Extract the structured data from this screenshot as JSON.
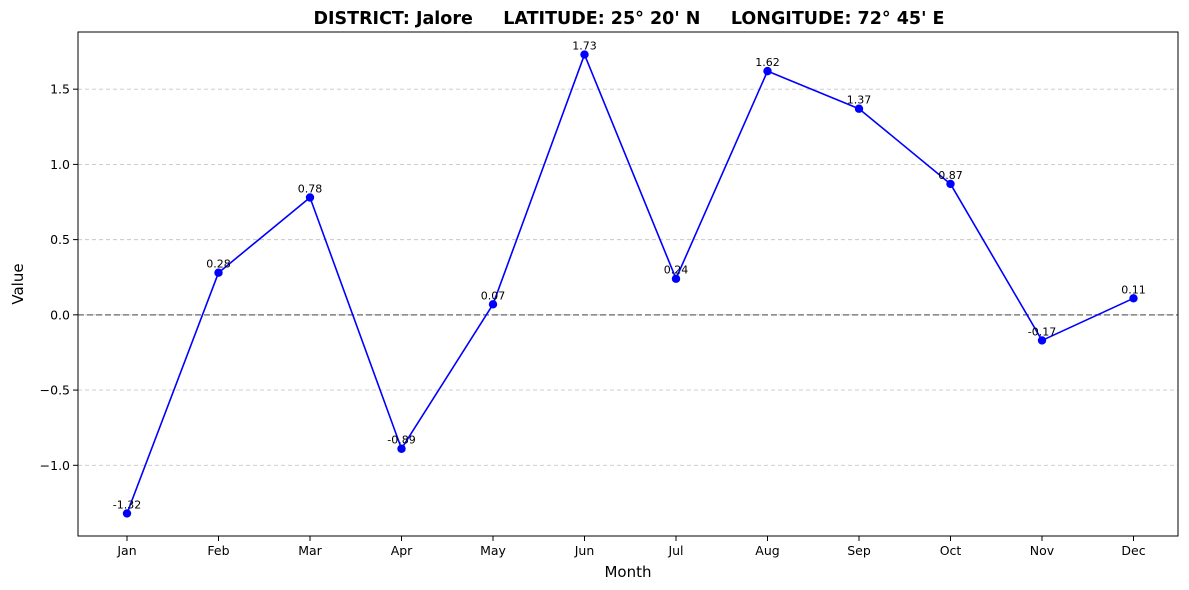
{
  "chart_data": {
    "type": "line",
    "title": "DISTRICT: Jalore     LATITUDE: 25° 20' N     LONGITUDE: 72° 45' E",
    "xlabel": "Month",
    "ylabel": "Value",
    "categories": [
      "Jan",
      "Feb",
      "Mar",
      "Apr",
      "May",
      "Jun",
      "Jul",
      "Aug",
      "Sep",
      "Oct",
      "Nov",
      "Dec"
    ],
    "series": [
      {
        "values": [
          -1.32,
          0.28,
          0.78,
          -0.89,
          0.07,
          1.73,
          0.24,
          1.62,
          1.37,
          0.87,
          -0.17,
          0.11
        ],
        "color": "#0000ff",
        "marker": "circle"
      }
    ],
    "data_labels": [
      "-1.32",
      "0.28",
      "0.78",
      "-0.89",
      "0.07",
      "1.73",
      "0.24",
      "1.62",
      "1.37",
      "0.87",
      "-0.17",
      "0.11"
    ],
    "y_ticks": [
      -1.0,
      -0.5,
      0.0,
      0.5,
      1.0,
      1.5
    ],
    "y_tick_labels": [
      "−1.0",
      "−0.5",
      "0.0",
      "0.5",
      "1.0",
      "1.5"
    ],
    "ylim": [
      -1.47,
      1.88
    ],
    "grid": "horizontal-dashed",
    "reference_line": {
      "y": 0,
      "style": "dashed",
      "color": "#808080"
    },
    "legend": "none"
  }
}
